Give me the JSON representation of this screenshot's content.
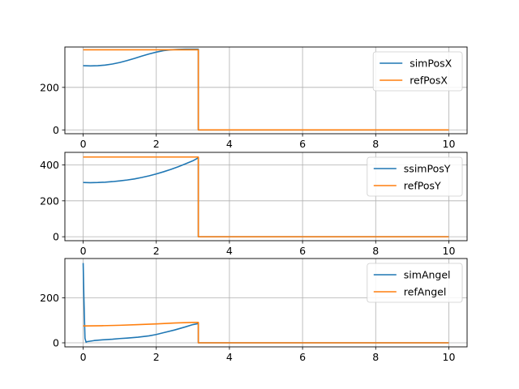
{
  "chart_data": [
    {
      "type": "line",
      "title": "",
      "xlabel": "",
      "ylabel": "",
      "xlim": [
        -0.5,
        10.5
      ],
      "ylim": [
        -18,
        390
      ],
      "xticks": [
        0,
        2,
        4,
        6,
        8,
        10
      ],
      "yticks": [
        0,
        200
      ],
      "grid": true,
      "legend_position": "top-right",
      "series": [
        {
          "name": "simPosX",
          "color": "#1f77b4",
          "x": [
            0,
            0.2,
            0.4,
            0.6,
            0.8,
            1.0,
            1.2,
            1.4,
            1.6,
            1.8,
            2.0,
            2.2,
            2.4,
            2.6,
            2.8,
            3.0,
            3.15,
            3.15,
            10
          ],
          "y": [
            302,
            301,
            302,
            305,
            310,
            317,
            326,
            336,
            347,
            357,
            366,
            373,
            377,
            379,
            380,
            380,
            380,
            0,
            0
          ]
        },
        {
          "name": "refPosX",
          "color": "#ff7f0e",
          "x": [
            0,
            3.15,
            3.15,
            10
          ],
          "y": [
            377,
            377,
            0,
            0
          ]
        }
      ]
    },
    {
      "type": "line",
      "title": "",
      "xlabel": "",
      "ylabel": "",
      "xlim": [
        -0.5,
        10.5
      ],
      "ylim": [
        -22,
        470
      ],
      "xticks": [
        0,
        2,
        4,
        6,
        8,
        10
      ],
      "yticks": [
        0,
        200,
        400
      ],
      "grid": true,
      "legend_position": "top-right",
      "series": [
        {
          "name": "ssimPosY",
          "color": "#1f77b4",
          "x": [
            0,
            0.2,
            0.4,
            0.6,
            0.8,
            1.0,
            1.2,
            1.4,
            1.6,
            1.8,
            2.0,
            2.2,
            2.4,
            2.6,
            2.8,
            3.0,
            3.15,
            3.15,
            10
          ],
          "y": [
            302,
            301,
            302,
            304,
            307,
            311,
            316,
            322,
            330,
            339,
            350,
            362,
            375,
            390,
            406,
            423,
            440,
            0,
            0
          ]
        },
        {
          "name": "refPosY",
          "color": "#ff7f0e",
          "x": [
            0,
            3.15,
            3.15,
            10
          ],
          "y": [
            444,
            444,
            0,
            0
          ]
        }
      ]
    },
    {
      "type": "line",
      "title": "",
      "xlabel": "",
      "ylabel": "",
      "xlim": [
        -0.5,
        10.5
      ],
      "ylim": [
        -18,
        375
      ],
      "xticks": [
        0,
        2,
        4,
        6,
        8,
        10
      ],
      "yticks": [
        0,
        200
      ],
      "grid": true,
      "legend_position": "top-right",
      "series": [
        {
          "name": "simAngel",
          "color": "#1f77b4",
          "x": [
            0,
            0.02,
            0.05,
            0.08,
            0.1,
            0.3,
            0.5,
            0.8,
            1.0,
            1.2,
            1.5,
            1.8,
            2.0,
            2.2,
            2.5,
            2.8,
            3.0,
            3.15,
            3.15,
            10
          ],
          "y": [
            355,
            200,
            20,
            3,
            5,
            10,
            13,
            16,
            19,
            21,
            25,
            31,
            37,
            45,
            57,
            71,
            81,
            86,
            0,
            0
          ]
        },
        {
          "name": "refAngel",
          "color": "#ff7f0e",
          "x": [
            0,
            0.5,
            1.0,
            1.5,
            2.0,
            2.5,
            3.0,
            3.15,
            3.15,
            10
          ],
          "y": [
            75,
            76,
            78,
            81,
            84,
            88,
            91,
            91,
            0,
            0
          ]
        }
      ]
    }
  ]
}
